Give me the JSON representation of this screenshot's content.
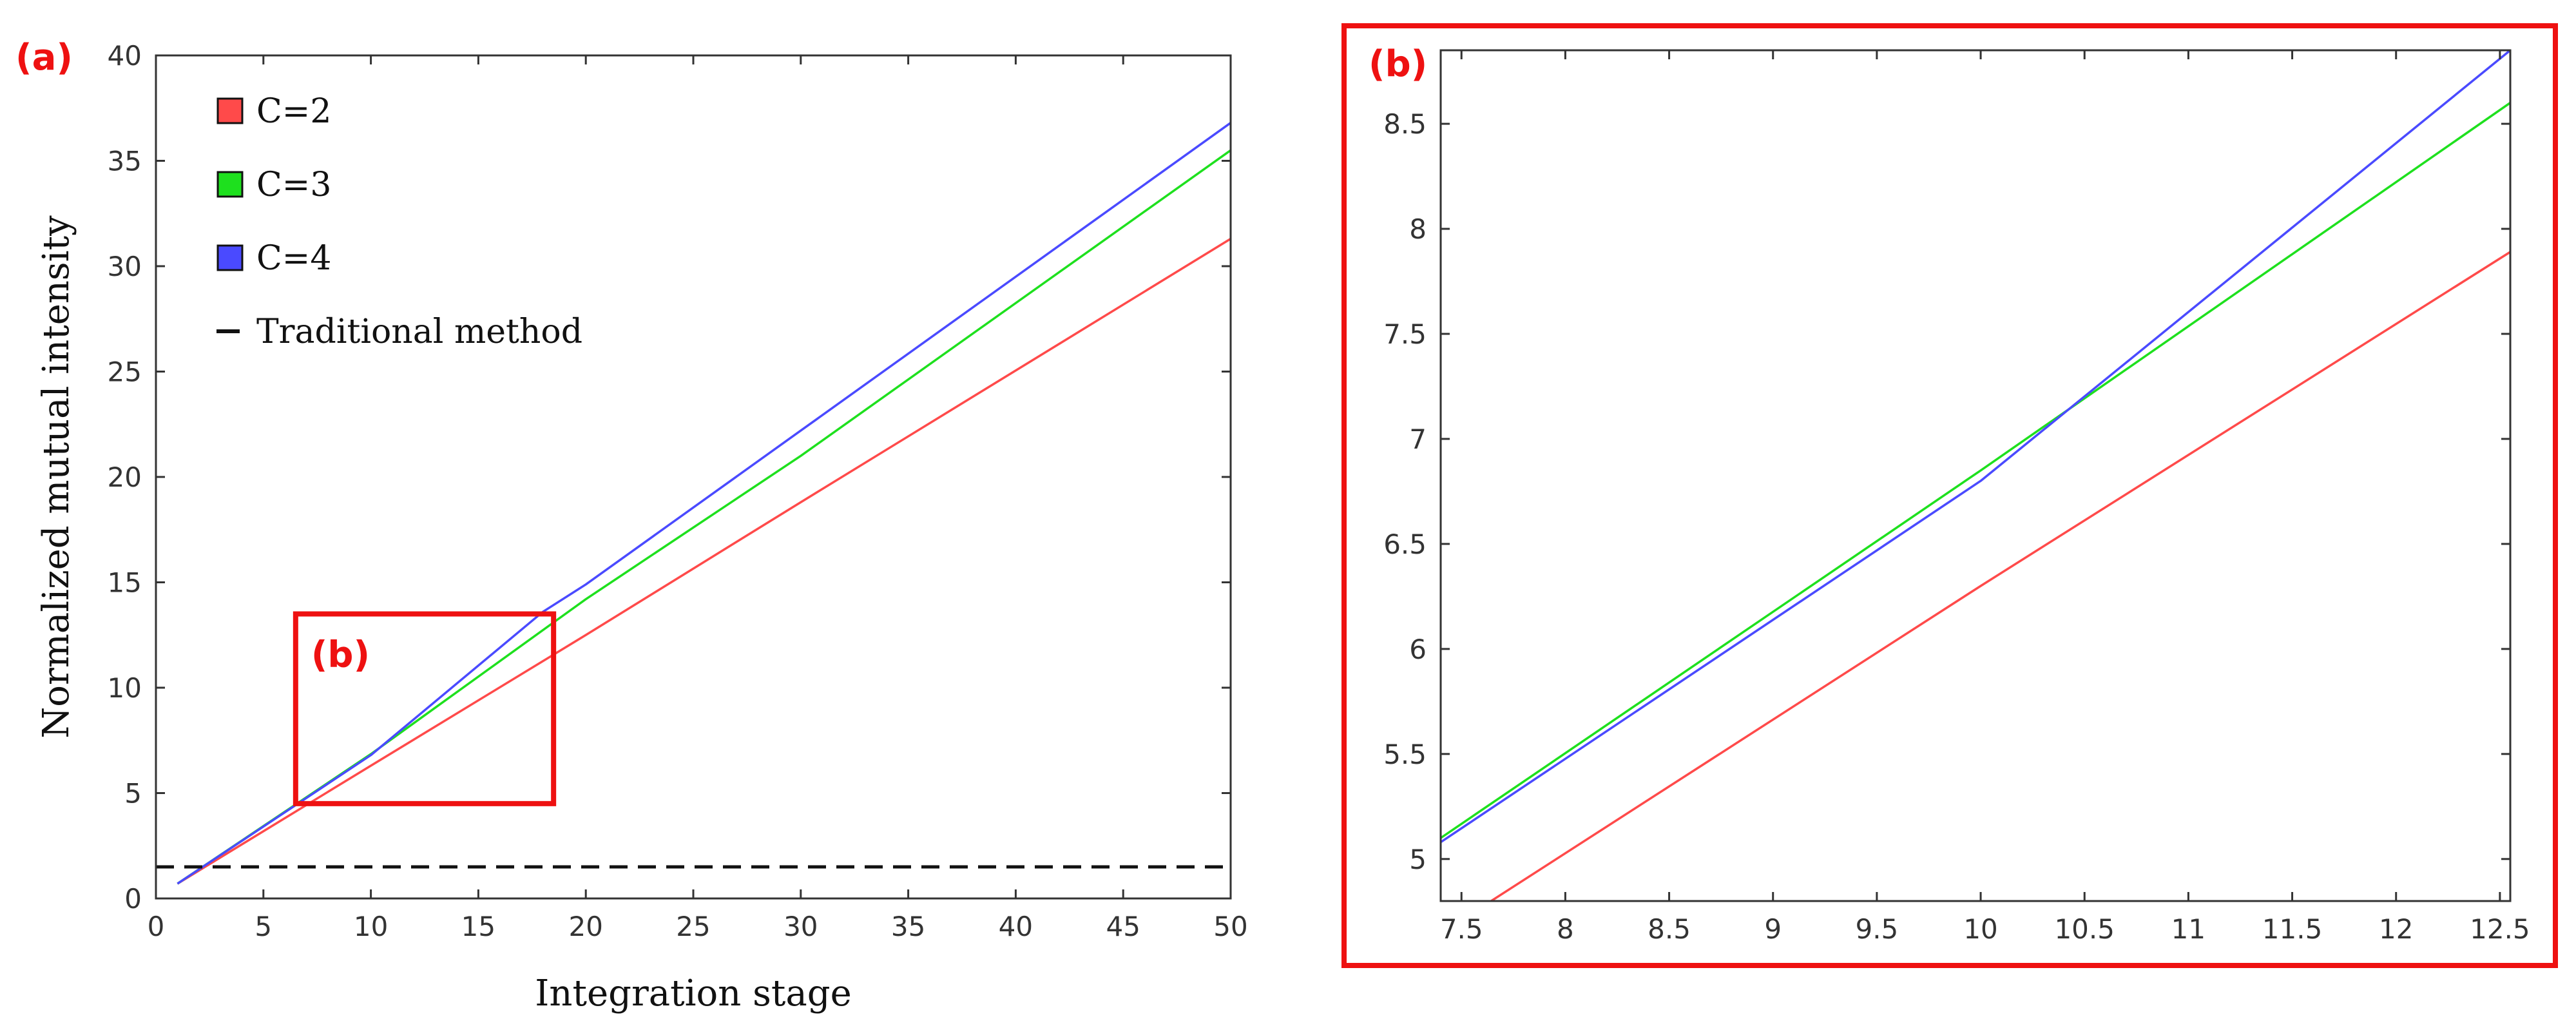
{
  "panel_labels": {
    "a": "(a)",
    "b": "(b)",
    "inset_marker": "(b)"
  },
  "colors": {
    "c2": "#ff4a4a",
    "c3": "#1ee01e",
    "c4": "#4a4aff",
    "traditional": "#111111",
    "highlight": "#ee1111",
    "axis": "#333333"
  },
  "chart_data": [
    {
      "type": "line",
      "panel": "(a)",
      "xlabel": "Integration stage",
      "ylabel": "Normalized mutual intensity",
      "xlim": [
        0,
        50
      ],
      "ylim": [
        0,
        40
      ],
      "xticks": [
        0,
        5,
        10,
        15,
        20,
        25,
        30,
        35,
        40,
        45,
        50
      ],
      "yticks": [
        0,
        5,
        10,
        15,
        20,
        25,
        30,
        35,
        40
      ],
      "legend_position": "top-left",
      "zoom_region": {
        "x": [
          6.5,
          18.5
        ],
        "y": [
          4.5,
          13.5
        ]
      },
      "series": [
        {
          "name": "C=2",
          "key": "c2",
          "x": [
            1,
            10,
            20,
            30,
            50
          ],
          "y": [
            0.7,
            6.3,
            12.5,
            18.8,
            31.3
          ]
        },
        {
          "name": "C=3",
          "key": "c3",
          "x": [
            1,
            10,
            20,
            30,
            50
          ],
          "y": [
            0.7,
            6.85,
            14.2,
            21.0,
            35.5
          ]
        },
        {
          "name": "C=4",
          "key": "c4",
          "x": [
            1,
            10,
            18,
            20,
            30,
            50
          ],
          "y": [
            0.7,
            6.8,
            13.6,
            14.9,
            22.2,
            36.8
          ]
        },
        {
          "name": "Traditional method",
          "key": "traditional",
          "dashed": true,
          "x": [
            0,
            50
          ],
          "y": [
            1.5,
            1.5
          ]
        }
      ]
    },
    {
      "type": "line",
      "panel": "(b)",
      "xlabel": "",
      "ylabel": "",
      "xlim": [
        7.4,
        12.55
      ],
      "ylim": [
        4.8,
        8.85
      ],
      "xticks": [
        7.5,
        8,
        8.5,
        9,
        9.5,
        10,
        10.5,
        11,
        11.5,
        12,
        12.5
      ],
      "yticks": [
        5,
        5.5,
        6,
        6.5,
        7,
        7.5,
        8,
        8.5
      ],
      "series": [
        {
          "name": "C=2",
          "key": "c2",
          "x": [
            7.58,
            10,
            12.55
          ],
          "y": [
            4.76,
            6.3,
            7.89
          ]
        },
        {
          "name": "C=3",
          "key": "c3",
          "x": [
            7.4,
            10,
            12.55
          ],
          "y": [
            5.1,
            6.85,
            8.6
          ]
        },
        {
          "name": "C=4",
          "key": "c4",
          "x": [
            7.4,
            10,
            12.55
          ],
          "y": [
            5.08,
            6.8,
            8.85
          ]
        }
      ]
    }
  ]
}
